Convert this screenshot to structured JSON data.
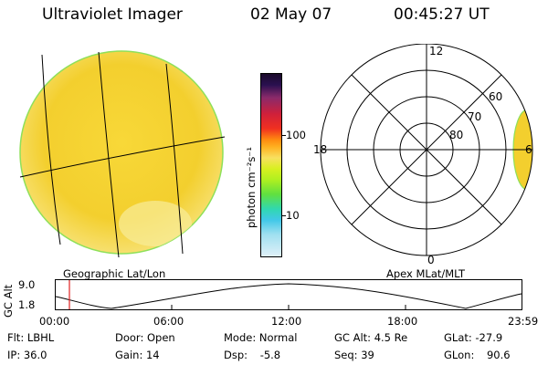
{
  "header": {
    "instrument": "Ultraviolet Imager",
    "date": "02 May 07",
    "time": "00:45:27 UT"
  },
  "colorbar": {
    "label": "photon cm⁻²s⁻¹",
    "tick_values": [
      100,
      10
    ],
    "tick_labels": [
      "100",
      "10"
    ]
  },
  "polar_plot": {
    "mlt_labels": {
      "top": "12",
      "left": "18",
      "right": "6",
      "bottom": "0"
    },
    "lat_labels": [
      "60",
      "70",
      "80"
    ]
  },
  "captions": {
    "left": "Geographic Lat/Lon",
    "right": "Apex MLat/MLT"
  },
  "timeline": {
    "axis_label": "GC Alt",
    "y_labels": [
      "9.0",
      "1.8"
    ],
    "x_labels": [
      "00:00",
      "06:00",
      "12:00",
      "18:00",
      "23:59"
    ],
    "current_time": "00:45"
  },
  "info": {
    "flt_label": "Flt:",
    "flt_value": "LBHL",
    "door_label": "Door:",
    "door_value": "Open",
    "mode_label": "Mode:",
    "mode_value": "Normal",
    "gcalt_label": "GC Alt:",
    "gcalt_value": "4.5 Re",
    "glat_label": "GLat:",
    "glat_value": "-27.9",
    "ip_label": "IP:",
    "ip_value": "36.0",
    "gain_label": "Gain:",
    "gain_value": "14",
    "dsp_label": "Dsp:",
    "dsp_value": "-5.8",
    "seq_label": "Seq:",
    "seq_value": "39",
    "glon_label": "GLon:",
    "glon_value": "90.6"
  },
  "colors": {
    "image_fill": "#f6d63a",
    "image_edge": "#8ee05a"
  }
}
